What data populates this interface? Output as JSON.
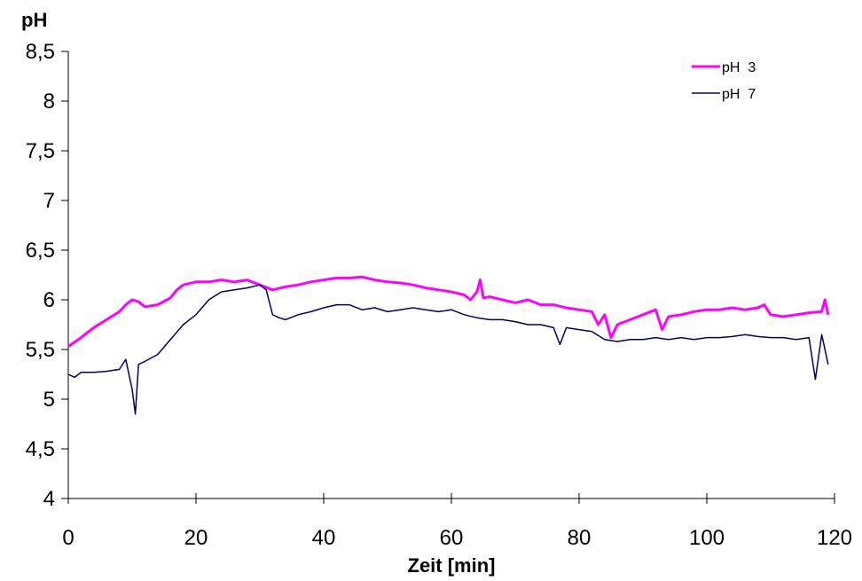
{
  "chart_data": {
    "type": "line",
    "title": "",
    "xlabel": "Zeit [min]",
    "ylabel": "pH",
    "xlim": [
      0,
      120
    ],
    "ylim": [
      4,
      8.5
    ],
    "x_ticks": [
      0,
      20,
      40,
      60,
      80,
      100,
      120
    ],
    "x_tick_labels": [
      "0",
      "20",
      "40",
      "60",
      "80",
      "100",
      "120"
    ],
    "y_ticks": [
      4,
      4.5,
      5,
      5.5,
      6,
      6.5,
      7,
      7.5,
      8,
      8.5
    ],
    "y_tick_labels": [
      "4",
      "4,5",
      "5",
      "5,5",
      "6",
      "6,5",
      "7",
      "7,5",
      "8",
      "8,5"
    ],
    "grid": false,
    "legend_position": "top-right",
    "series": [
      {
        "name": "pH  3",
        "color": "#ff00ff",
        "x": [
          0,
          2,
          4,
          6,
          8,
          9,
          10,
          11,
          12,
          14,
          16,
          17,
          18,
          20,
          22,
          24,
          26,
          28,
          30,
          32,
          34,
          36,
          38,
          40,
          42,
          44,
          46,
          48,
          50,
          52,
          54,
          56,
          58,
          60,
          62,
          63,
          64,
          64.5,
          65,
          66,
          68,
          70,
          72,
          74,
          76,
          78,
          80,
          82,
          83,
          84,
          85,
          86,
          88,
          90,
          92,
          93,
          94,
          96,
          98,
          100,
          102,
          104,
          106,
          108,
          109,
          110,
          112,
          114,
          116,
          118,
          118.5,
          119
        ],
        "y": [
          5.53,
          5.62,
          5.72,
          5.8,
          5.88,
          5.95,
          6.0,
          5.98,
          5.93,
          5.95,
          6.02,
          6.1,
          6.15,
          6.18,
          6.18,
          6.2,
          6.18,
          6.2,
          6.15,
          6.1,
          6.13,
          6.15,
          6.18,
          6.2,
          6.22,
          6.22,
          6.23,
          6.2,
          6.18,
          6.17,
          6.15,
          6.12,
          6.1,
          6.08,
          6.05,
          6.0,
          6.08,
          6.2,
          6.02,
          6.03,
          6.0,
          5.97,
          6.0,
          5.95,
          5.95,
          5.92,
          5.9,
          5.88,
          5.75,
          5.85,
          5.62,
          5.75,
          5.8,
          5.85,
          5.9,
          5.7,
          5.83,
          5.85,
          5.88,
          5.9,
          5.9,
          5.92,
          5.9,
          5.92,
          5.95,
          5.85,
          5.83,
          5.85,
          5.87,
          5.88,
          6.0,
          5.85
        ]
      },
      {
        "name": "pH  7",
        "color": "#000066",
        "x": [
          0,
          1,
          2,
          4,
          6,
          8,
          9,
          10,
          10.5,
          11,
          12,
          14,
          16,
          18,
          20,
          22,
          24,
          26,
          28,
          30,
          31,
          32,
          33,
          34,
          36,
          38,
          40,
          42,
          44,
          46,
          48,
          50,
          52,
          54,
          56,
          58,
          60,
          62,
          64,
          66,
          68,
          70,
          72,
          74,
          76,
          77,
          78,
          80,
          82,
          84,
          86,
          88,
          90,
          92,
          94,
          96,
          98,
          100,
          102,
          104,
          106,
          108,
          110,
          112,
          114,
          116,
          117,
          118,
          119
        ],
        "y": [
          5.25,
          5.22,
          5.27,
          5.27,
          5.28,
          5.3,
          5.4,
          5.1,
          4.85,
          5.35,
          5.38,
          5.45,
          5.6,
          5.75,
          5.85,
          6.0,
          6.08,
          6.1,
          6.12,
          6.15,
          6.1,
          5.85,
          5.82,
          5.8,
          5.85,
          5.88,
          5.92,
          5.95,
          5.95,
          5.9,
          5.92,
          5.88,
          5.9,
          5.92,
          5.9,
          5.88,
          5.9,
          5.85,
          5.82,
          5.8,
          5.8,
          5.78,
          5.75,
          5.75,
          5.72,
          5.55,
          5.72,
          5.7,
          5.68,
          5.6,
          5.58,
          5.6,
          5.6,
          5.62,
          5.6,
          5.62,
          5.6,
          5.62,
          5.62,
          5.63,
          5.65,
          5.63,
          5.62,
          5.62,
          5.6,
          5.62,
          5.2,
          5.65,
          5.35
        ]
      }
    ]
  }
}
